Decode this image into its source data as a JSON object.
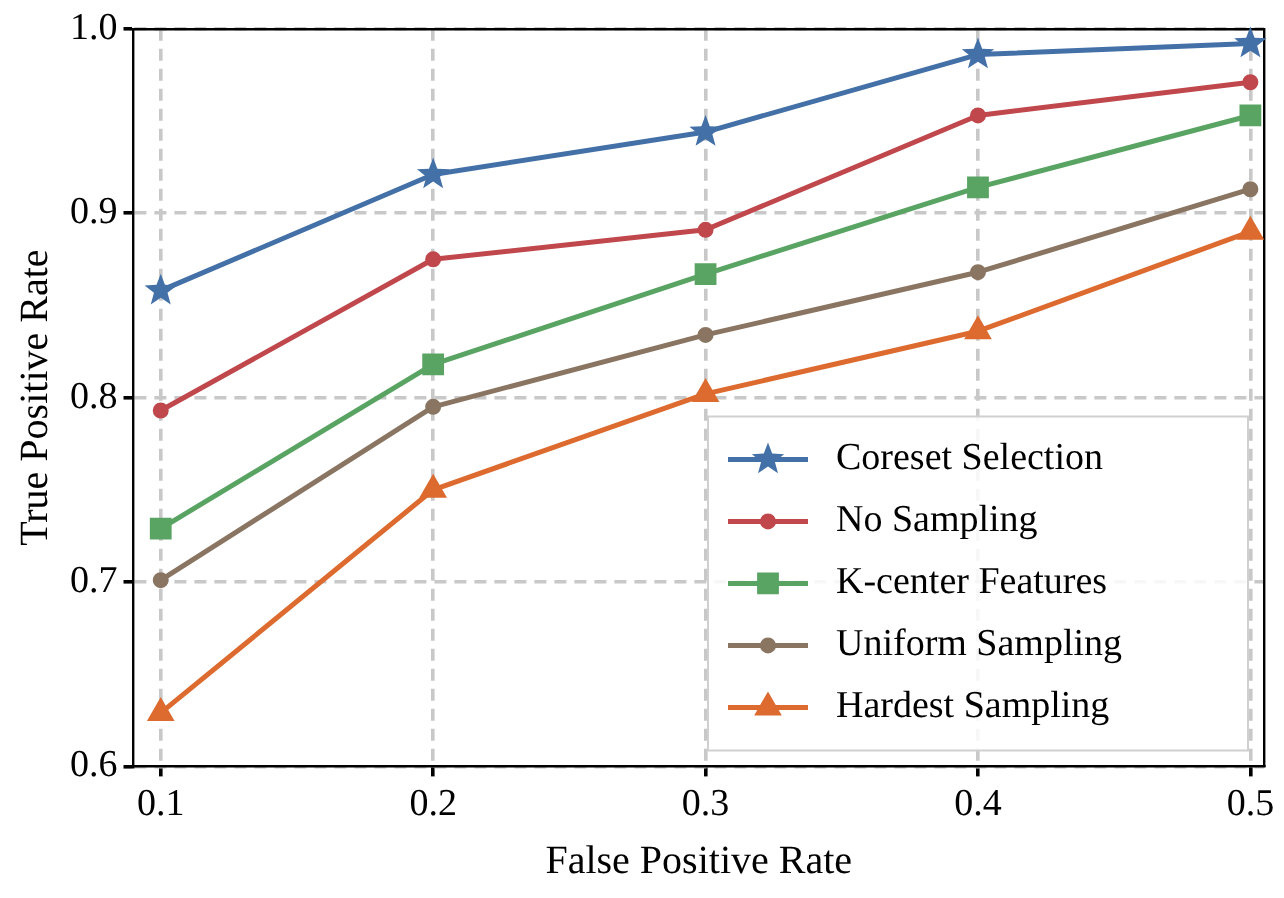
{
  "chart_data": {
    "type": "line",
    "xlabel": "False Positive Rate",
    "ylabel": "True Positive Rate",
    "x": [
      0.1,
      0.2,
      0.3,
      0.4,
      0.5
    ],
    "xlim": [
      0.09,
      0.505
    ],
    "xticks": [
      0.1,
      0.2,
      0.3,
      0.4,
      0.5
    ],
    "ylim": [
      0.6,
      1.0
    ],
    "yticks": [
      {
        "value": 0.6,
        "label": "0.6"
      },
      {
        "value": 0.7,
        "label": "0.7"
      },
      {
        "value": 0.8,
        "label": "0.8"
      },
      {
        "value": 0.9,
        "label": "0.9"
      },
      {
        "value": 1.0,
        "label": "1.0"
      }
    ],
    "grid": true,
    "legend": "bottom right",
    "line_style": "solid",
    "series": [
      {
        "name": "Coreset Selection",
        "color": "#4470a8",
        "marker": "star",
        "values": [
          0.858,
          0.921,
          0.944,
          0.986,
          0.992
        ]
      },
      {
        "name": "No Sampling",
        "color": "#c0474c",
        "marker": "circle",
        "values": [
          0.793,
          0.875,
          0.891,
          0.953,
          0.971
        ]
      },
      {
        "name": "K-center Features",
        "color": "#5aa463",
        "marker": "square",
        "values": [
          0.729,
          0.818,
          0.867,
          0.914,
          0.953
        ]
      },
      {
        "name": "Uniform Sampling",
        "color": "#8a7562",
        "marker": "circle",
        "values": [
          0.701,
          0.795,
          0.834,
          0.868,
          0.913
        ]
      },
      {
        "name": "Hardest Sampling",
        "color": "#dd6a2e",
        "marker": "triangle",
        "values": [
          0.629,
          0.75,
          0.802,
          0.836,
          0.89
        ]
      }
    ]
  }
}
